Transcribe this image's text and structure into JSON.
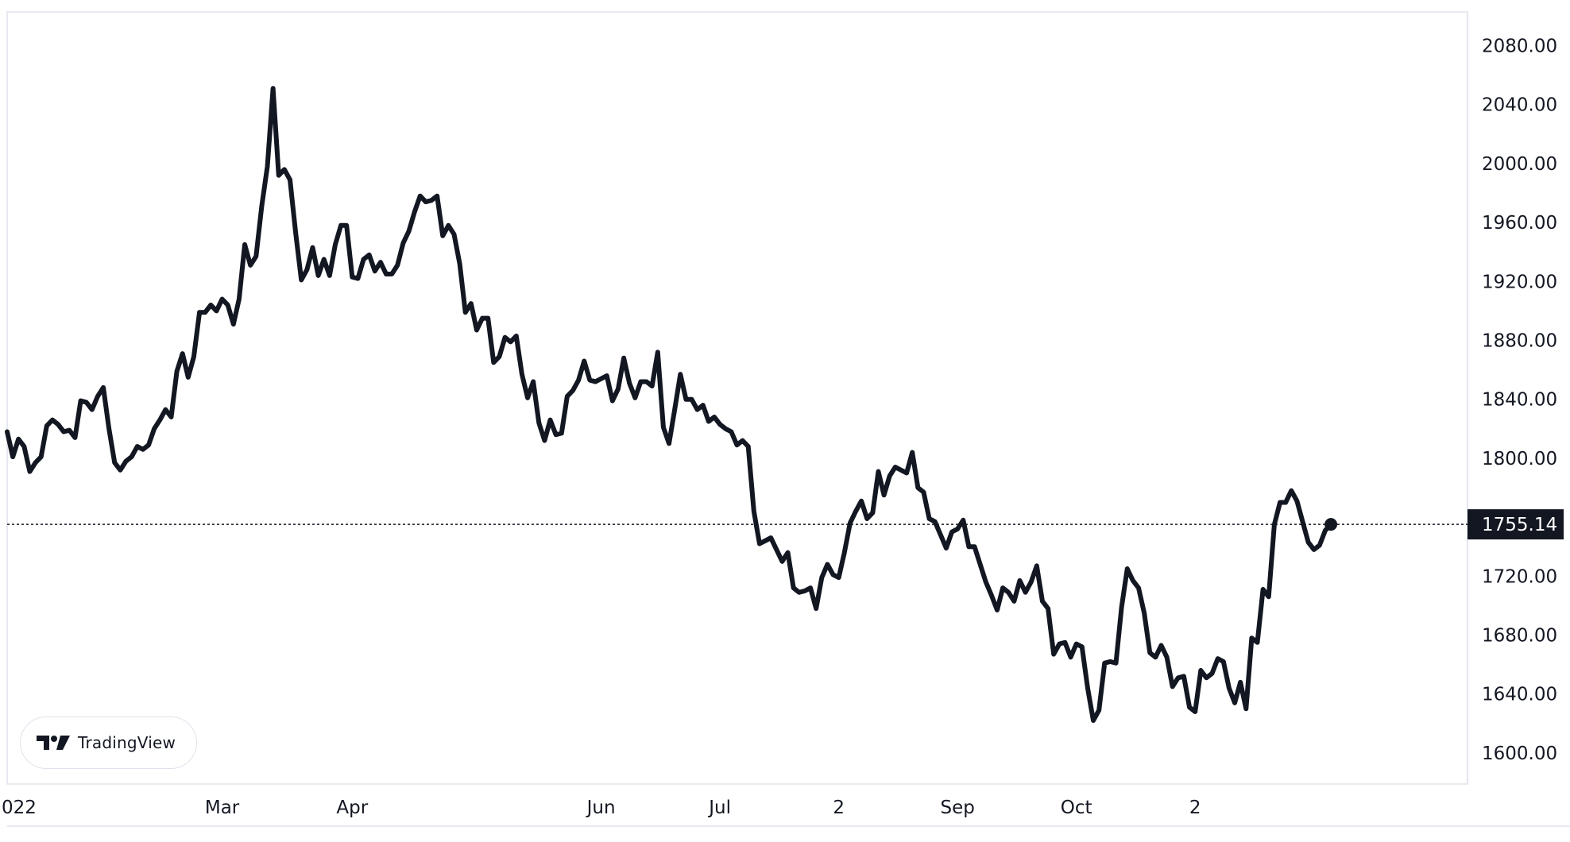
{
  "chart_data": {
    "type": "line",
    "title": "",
    "xlabel": "",
    "ylabel": "",
    "ylim": [
      1585,
      2110
    ],
    "y_ticks": [
      "2080.00",
      "2040.00",
      "2000.00",
      "1960.00",
      "1920.00",
      "1880.00",
      "1840.00",
      "1800.00",
      "1760.00",
      "1720.00",
      "1680.00",
      "1640.00",
      "1600.00"
    ],
    "x_ticks": [
      {
        "label": "022",
        "index": 0
      },
      {
        "label": "Mar",
        "index": 38
      },
      {
        "label": "Apr",
        "index": 61
      },
      {
        "label": "Jun",
        "index": 105
      },
      {
        "label": "Jul",
        "index": 126
      },
      {
        "label": "2",
        "index": 147
      },
      {
        "label": "Sep",
        "index": 168
      },
      {
        "label": "Oct",
        "index": 189
      },
      {
        "label": "2",
        "index": 210
      }
    ],
    "last_price": 1755.14,
    "last_price_label": "1755.14",
    "grid": false,
    "line_color": "#131722",
    "series": [
      {
        "values": [
          1818,
          1801,
          1813,
          1808,
          1791,
          1797,
          1801,
          1822,
          1826,
          1823,
          1818,
          1819,
          1814,
          1839,
          1838,
          1833,
          1842,
          1848,
          1820,
          1797,
          1792,
          1798,
          1801,
          1808,
          1806,
          1809,
          1820,
          1826,
          1833,
          1828,
          1859,
          1871,
          1855,
          1869,
          1899,
          1899,
          1904,
          1900,
          1908,
          1904,
          1891,
          1908,
          1945,
          1931,
          1937,
          1971,
          1998,
          2051,
          1992,
          1996,
          1989,
          1953,
          1921,
          1928,
          1943,
          1924,
          1935,
          1924,
          1945,
          1958,
          1958,
          1923,
          1922,
          1935,
          1938,
          1927,
          1933,
          1925,
          1925,
          1931,
          1946,
          1954,
          1967,
          1978,
          1974,
          1975,
          1978,
          1951,
          1958,
          1952,
          1932,
          1899,
          1905,
          1887,
          1895,
          1895,
          1865,
          1869,
          1882,
          1879,
          1883,
          1857,
          1841,
          1852,
          1824,
          1812,
          1826,
          1816,
          1817,
          1842,
          1846,
          1853,
          1866,
          1853,
          1852,
          1854,
          1856,
          1839,
          1847,
          1868,
          1851,
          1841,
          1852,
          1852,
          1849,
          1872,
          1821,
          1810,
          1833,
          1857,
          1840,
          1840,
          1833,
          1836,
          1825,
          1828,
          1823,
          1820,
          1818,
          1809,
          1812,
          1808,
          1764,
          1742,
          1744,
          1746,
          1738,
          1730,
          1736,
          1712,
          1709,
          1710,
          1712,
          1698,
          1719,
          1728,
          1721,
          1719,
          1736,
          1756,
          1764,
          1771,
          1759,
          1763,
          1791,
          1775,
          1788,
          1794,
          1792,
          1790,
          1804,
          1780,
          1777,
          1759,
          1757,
          1748,
          1739,
          1750,
          1752,
          1758,
          1740,
          1740,
          1728,
          1716,
          1707,
          1697,
          1712,
          1709,
          1703,
          1717,
          1709,
          1716,
          1727,
          1703,
          1698,
          1667,
          1674,
          1675,
          1665,
          1674,
          1672,
          1644,
          1622,
          1629,
          1661,
          1662,
          1661,
          1699,
          1725,
          1717,
          1712,
          1695,
          1668,
          1665,
          1673,
          1665,
          1645,
          1651,
          1652,
          1631,
          1628,
          1656,
          1651,
          1654,
          1664,
          1662,
          1644,
          1634,
          1648,
          1630,
          1678,
          1675,
          1711,
          1706,
          1755,
          1770,
          1770,
          1778,
          1771,
          1757,
          1743,
          1738,
          1741,
          1751,
          1755.14
        ]
      }
    ]
  },
  "branding": {
    "logo_text": "TradingView",
    "logo_icon": "tradingview-logo-icon"
  }
}
